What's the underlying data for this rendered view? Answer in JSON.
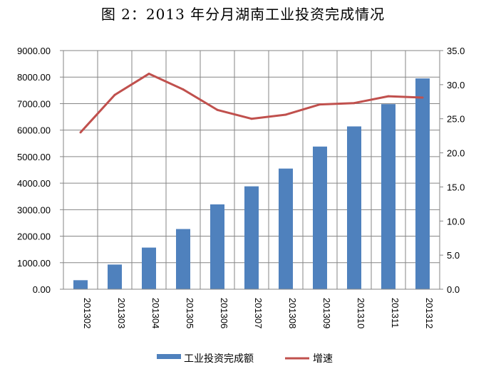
{
  "chart_data": {
    "type": "bar",
    "title": "图 2：2013 年分月湖南工业投资完成情况",
    "categories": [
      "201302",
      "201303",
      "201304",
      "201305",
      "201306",
      "201307",
      "201308",
      "201309",
      "201310",
      "201311",
      "201312"
    ],
    "series": [
      {
        "name": "工业投资完成额",
        "type": "bar",
        "axis": "left",
        "color": "#4F81BD",
        "values": [
          340,
          930,
          1570,
          2270,
          3200,
          3880,
          4550,
          5380,
          6140,
          6980,
          7950
        ]
      },
      {
        "name": "增速",
        "type": "line",
        "axis": "right",
        "color": "#C0504D",
        "values": [
          23.0,
          28.5,
          31.6,
          29.3,
          26.3,
          25.0,
          25.6,
          27.1,
          27.3,
          28.3,
          28.1
        ]
      }
    ],
    "y_left": {
      "min": 0,
      "max": 9000,
      "step": 1000,
      "ticks": [
        "0.00",
        "1000.00",
        "2000.00",
        "3000.00",
        "4000.00",
        "5000.00",
        "6000.00",
        "7000.00",
        "8000.00",
        "9000.00"
      ]
    },
    "y_right": {
      "min": 0,
      "max": 35,
      "step": 5,
      "ticks": [
        "0.0",
        "5.0",
        "10.0",
        "15.0",
        "20.0",
        "25.0",
        "30.0",
        "35.0"
      ]
    },
    "grid": true,
    "legend_position": "bottom"
  }
}
